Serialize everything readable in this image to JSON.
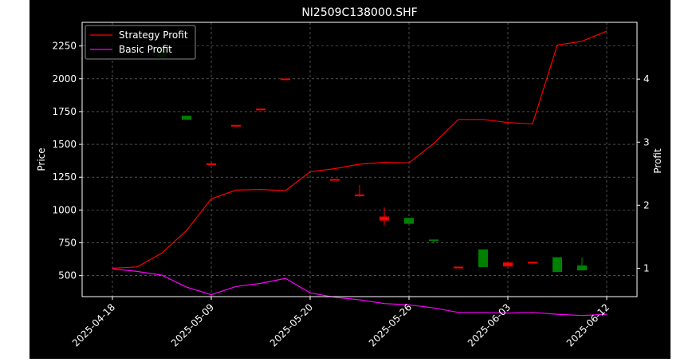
{
  "chart_data": {
    "type": "candlestick+line",
    "title": "NI2509C138000.SHF",
    "xlabel": "",
    "ylabel_left": "Price",
    "ylabel_right": "Profit",
    "ylim_left": [
      340,
      2430
    ],
    "ylim_right": [
      0.55,
      4.9
    ],
    "yticks_left": [
      500,
      750,
      1000,
      1250,
      1500,
      1750,
      2000,
      2250
    ],
    "yticks_right": [
      1,
      2,
      3,
      4
    ],
    "xtick_labels": [
      "2025-04-18",
      "2025-05-09",
      "2025-05-20",
      "2025-05-26",
      "2025-06-03",
      "2025-06-12"
    ],
    "xtick_index": [
      0,
      4,
      8,
      12,
      16,
      20
    ],
    "grid": true,
    "legend_position": "top-left",
    "candles": [
      {
        "i": 2,
        "open": 2255,
        "high": 2255,
        "low": 2160,
        "close": 2165
      },
      {
        "i": 3,
        "open": 1718,
        "high": 1718,
        "low": 1688,
        "close": 1688
      },
      {
        "i": 4,
        "open": 1347,
        "high": 1355,
        "low": 1347,
        "close": 1355
      },
      {
        "i": 5,
        "open": 1640,
        "high": 1648,
        "low": 1640,
        "close": 1648
      },
      {
        "i": 6,
        "open": 1765,
        "high": 1772,
        "low": 1765,
        "close": 1772
      },
      {
        "i": 7,
        "open": 1995,
        "high": 2002,
        "low": 1995,
        "close": 2002
      },
      {
        "i": 9,
        "open": 1229,
        "high": 1236,
        "low": 1229,
        "close": 1236
      },
      {
        "i": 10,
        "open": 1105,
        "high": 1190,
        "low": 1100,
        "close": 1118
      },
      {
        "i": 11,
        "open": 920,
        "high": 1020,
        "low": 880,
        "close": 950
      },
      {
        "i": 12,
        "open": 940,
        "high": 940,
        "low": 895,
        "close": 895
      },
      {
        "i": 13,
        "open": 775,
        "high": 775,
        "low": 745,
        "close": 763
      },
      {
        "i": 14,
        "open": 562,
        "high": 568,
        "low": 562,
        "close": 568
      },
      {
        "i": 15,
        "open": 700,
        "high": 700,
        "low": 565,
        "close": 565
      },
      {
        "i": 16,
        "open": 570,
        "high": 600,
        "low": 570,
        "close": 600
      },
      {
        "i": 17,
        "open": 598,
        "high": 605,
        "low": 598,
        "close": 605
      },
      {
        "i": 18,
        "open": 640,
        "high": 640,
        "low": 527,
        "close": 527
      },
      {
        "i": 19,
        "open": 578,
        "high": 640,
        "low": 540,
        "close": 540
      }
    ],
    "series": [
      {
        "name": "Strategy Profit",
        "color": "#ff0000",
        "x": [
          0,
          1,
          2,
          3,
          4,
          5,
          6,
          7,
          8,
          9,
          10,
          11,
          12,
          13,
          14,
          15,
          16,
          17,
          18,
          19,
          20
        ],
        "values": [
          1.0,
          1.02,
          1.24,
          1.6,
          2.1,
          2.24,
          2.25,
          2.23,
          2.53,
          2.58,
          2.65,
          2.68,
          2.67,
          2.98,
          3.36,
          3.36,
          3.31,
          3.29,
          4.54,
          4.6,
          4.76
        ]
      },
      {
        "name": "Basic Profit",
        "color": "#ff00ff",
        "x": [
          0,
          1,
          2,
          3,
          4,
          5,
          6,
          7,
          8,
          9,
          10,
          11,
          12,
          13,
          14,
          15,
          16,
          17,
          18,
          19,
          20
        ],
        "values": [
          0.99,
          0.95,
          0.89,
          0.7,
          0.58,
          0.71,
          0.76,
          0.84,
          0.61,
          0.54,
          0.5,
          0.44,
          0.42,
          0.37,
          0.3,
          0.3,
          0.29,
          0.3,
          0.27,
          0.25,
          0.27
        ]
      }
    ],
    "colors": {
      "up": "#ff0000",
      "down": "#008000",
      "background": "#000000",
      "grid": "#808080",
      "foreground": "#ffffff"
    }
  }
}
